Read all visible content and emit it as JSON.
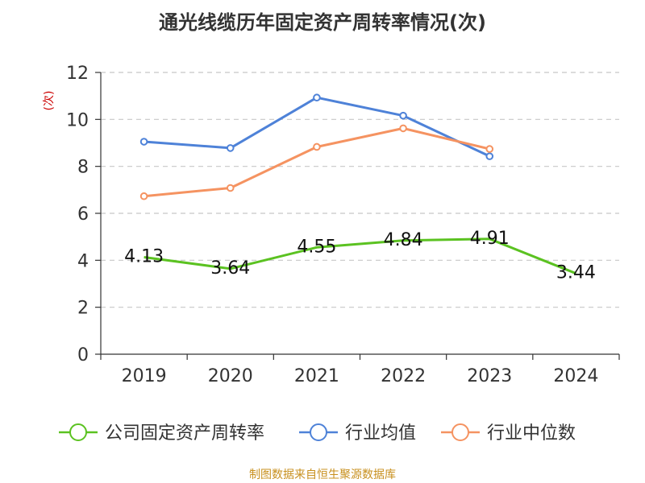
{
  "title": "通光线缆历年固定资产周转率情况(次)",
  "footer": "制图数据来自恒生聚源数据库",
  "chart_data": {
    "type": "line",
    "title": "通光线缆历年固定资产周转率情况(次)",
    "ylabel": "(次)",
    "xlabel": "",
    "categories": [
      "2019",
      "2020",
      "2021",
      "2022",
      "2023",
      "2024"
    ],
    "ylim": [
      0,
      12
    ],
    "yticks": [
      0,
      2,
      4,
      6,
      8,
      10,
      12
    ],
    "grid": true,
    "legend_position": "bottom",
    "series": [
      {
        "name": "公司固定资产周转率",
        "color": "#5bc221",
        "values": [
          4.13,
          3.64,
          4.55,
          4.84,
          4.91,
          3.44
        ],
        "data_labels": [
          "4.13",
          "3.64",
          "4.55",
          "4.84",
          "4.91",
          "3.44"
        ],
        "markers": false
      },
      {
        "name": "行业均值",
        "color": "#4e82d8",
        "values": [
          9.05,
          8.78,
          10.93,
          10.16,
          8.43,
          null
        ],
        "markers": true
      },
      {
        "name": "行业中位数",
        "color": "#f59361",
        "values": [
          6.73,
          7.08,
          8.83,
          9.62,
          8.74,
          null
        ],
        "markers": true
      }
    ]
  }
}
